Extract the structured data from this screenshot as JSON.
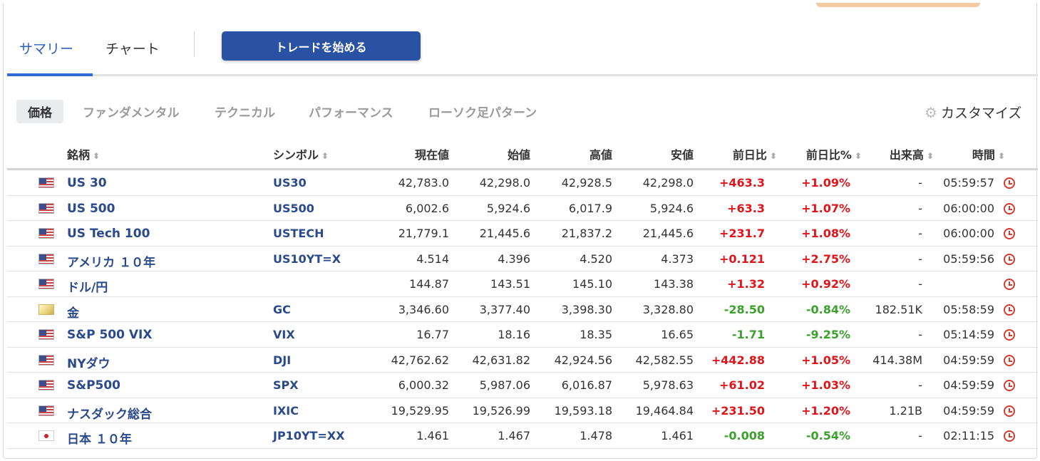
{
  "tabs": {
    "summary": "サマリー",
    "chart": "チャート"
  },
  "trade_button": "トレードを始める",
  "sub_tabs": [
    "価格",
    "ファンダメンタル",
    "テクニカル",
    "パフォーマンス",
    "ローソク足パターン"
  ],
  "customize_label": "カスタマイズ",
  "columns": {
    "name": "銘柄",
    "symbol": "シンボル",
    "price": "現在値",
    "open": "始値",
    "high": "高値",
    "low": "安値",
    "change": "前日比",
    "change_pct": "前日比%",
    "volume": "出来高",
    "time": "時間"
  },
  "sort_glyph": "⬍",
  "colors": {
    "up": "#e0151b",
    "down": "#3aa12b",
    "accent": "#2a52a4"
  },
  "rows": [
    {
      "flag": "us",
      "name": "US 30",
      "symbol": "US30",
      "price": "42,783.0",
      "open": "42,298.0",
      "high": "42,928.5",
      "low": "42,298.0",
      "change": "+463.3",
      "change_pct": "+1.09%",
      "volume": "-",
      "time": "05:59:57",
      "dir": "up"
    },
    {
      "flag": "us",
      "name": "US 500",
      "symbol": "US500",
      "price": "6,002.6",
      "open": "5,924.6",
      "high": "6,017.9",
      "low": "5,924.6",
      "change": "+63.3",
      "change_pct": "+1.07%",
      "volume": "-",
      "time": "06:00:00",
      "dir": "up"
    },
    {
      "flag": "us",
      "name": "US Tech 100",
      "symbol": "USTECH",
      "price": "21,779.1",
      "open": "21,445.6",
      "high": "21,837.2",
      "low": "21,445.6",
      "change": "+231.7",
      "change_pct": "+1.08%",
      "volume": "-",
      "time": "06:00:00",
      "dir": "up"
    },
    {
      "flag": "us",
      "name": "アメリカ １０年",
      "symbol": "US10YT=X",
      "price": "4.514",
      "open": "4.396",
      "high": "4.520",
      "low": "4.373",
      "change": "+0.121",
      "change_pct": "+2.75%",
      "volume": "-",
      "time": "05:59:56",
      "dir": "up"
    },
    {
      "flag": "us",
      "name": "ドル/円",
      "symbol": "",
      "price": "144.87",
      "open": "143.51",
      "high": "145.10",
      "low": "143.38",
      "change": "+1.32",
      "change_pct": "+0.92%",
      "volume": "-",
      "time": "",
      "dir": "up"
    },
    {
      "flag": "gold",
      "name": "金",
      "symbol": "GC",
      "price": "3,346.60",
      "open": "3,377.40",
      "high": "3,398.30",
      "low": "3,328.80",
      "change": "-28.50",
      "change_pct": "-0.84%",
      "volume": "182.51K",
      "time": "05:58:59",
      "dir": "down"
    },
    {
      "flag": "us",
      "name": "S&P 500 VIX",
      "symbol": "VIX",
      "price": "16.77",
      "open": "18.16",
      "high": "18.35",
      "low": "16.65",
      "change": "-1.71",
      "change_pct": "-9.25%",
      "volume": "-",
      "time": "05:14:59",
      "dir": "down"
    },
    {
      "flag": "us",
      "name": "NYダウ",
      "symbol": "DJI",
      "price": "42,762.62",
      "open": "42,631.82",
      "high": "42,924.56",
      "low": "42,582.55",
      "change": "+442.88",
      "change_pct": "+1.05%",
      "volume": "414.38M",
      "time": "04:59:59",
      "dir": "up"
    },
    {
      "flag": "us",
      "name": "S&P500",
      "symbol": "SPX",
      "price": "6,000.32",
      "open": "5,987.06",
      "high": "6,016.87",
      "low": "5,978.63",
      "change": "+61.02",
      "change_pct": "+1.03%",
      "volume": "-",
      "time": "04:59:59",
      "dir": "up"
    },
    {
      "flag": "us",
      "name": "ナスダック総合",
      "symbol": "IXIC",
      "price": "19,529.95",
      "open": "19,526.99",
      "high": "19,593.18",
      "low": "19,464.84",
      "change": "+231.50",
      "change_pct": "+1.20%",
      "volume": "1.21B",
      "time": "04:59:59",
      "dir": "up"
    },
    {
      "flag": "jp",
      "name": "日本 １０年",
      "symbol": "JP10YT=XX",
      "price": "1.461",
      "open": "1.467",
      "high": "1.478",
      "low": "1.461",
      "change": "-0.008",
      "change_pct": "-0.54%",
      "volume": "-",
      "time": "02:11:15",
      "dir": "down"
    }
  ]
}
